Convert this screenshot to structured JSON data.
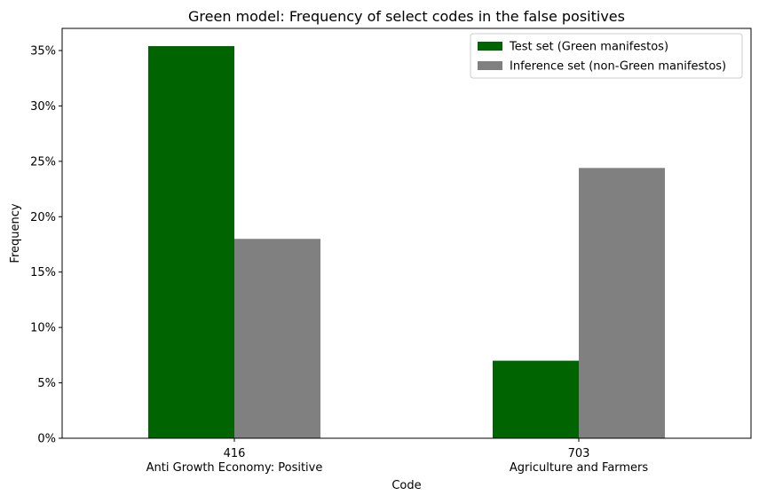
{
  "chart_data": {
    "type": "bar",
    "title": "Green model: Frequency of select codes in the false positives",
    "xlabel": "Code",
    "ylabel": "Frequency",
    "ylim": [
      0,
      37
    ],
    "yticks": [
      0,
      5,
      10,
      15,
      20,
      25,
      30,
      35
    ],
    "ytick_suffix": "%",
    "categories": [
      {
        "code": "416",
        "label": "Anti Growth Economy: Positive"
      },
      {
        "code": "703",
        "label": "Agriculture and Farmers"
      }
    ],
    "series": [
      {
        "name": "Test set (Green manifestos)",
        "color": "#006400",
        "values": [
          35.4,
          7.0
        ]
      },
      {
        "name": "Inference set (non-Green manifestos)",
        "color": "#808080",
        "values": [
          18.0,
          24.4
        ]
      }
    ],
    "grid": false,
    "legend_position": "top-right"
  }
}
